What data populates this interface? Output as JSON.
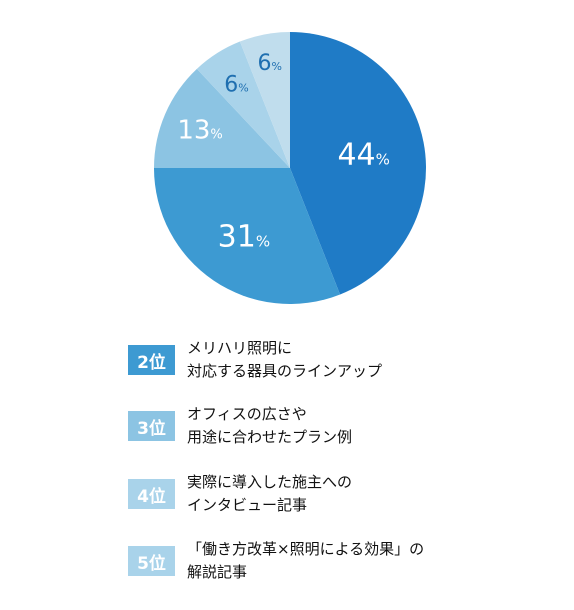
{
  "chart_data": {
    "type": "pie",
    "slices": [
      {
        "value": 44,
        "label": "44",
        "unit": "%",
        "color": "#1f7bc6"
      },
      {
        "value": 31,
        "label": "31",
        "unit": "%",
        "color": "#3d9ad2"
      },
      {
        "value": 13,
        "label": "13",
        "unit": "%",
        "color": "#8cc4e3"
      },
      {
        "value": 6,
        "label": "6",
        "unit": "%",
        "color": "#a9d3ea"
      },
      {
        "value": 6,
        "label": "6",
        "unit": "%",
        "color": "#c0dded"
      }
    ],
    "start": "12 o'clock",
    "direction": "clockwise"
  },
  "legend": [
    {
      "rank": "2位",
      "text": "メリハリ照明に\n対応する器具のラインアップ",
      "color": "#3d9ad2"
    },
    {
      "rank": "3位",
      "text": "オフィスの広さや\n用途に合わせたプラン例",
      "color": "#8cc4e3"
    },
    {
      "rank": "4位",
      "text": "実際に導入した施主への\nインタビュー記事",
      "color": "#a9d3ea"
    },
    {
      "rank": "5位",
      "text": "「働き方改革×照明による効果」の\n解説記事",
      "color": "#a9d3ea"
    }
  ]
}
